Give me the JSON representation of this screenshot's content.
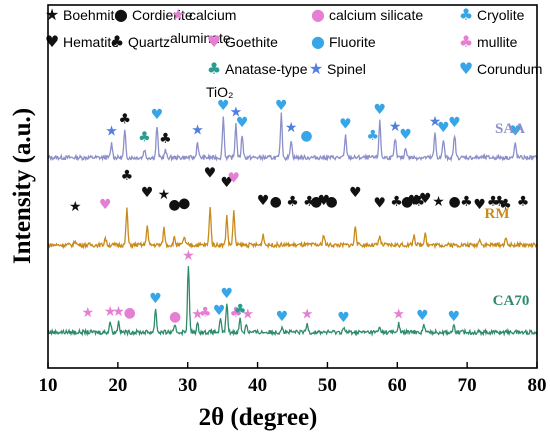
{
  "chart_data": {
    "type": "line",
    "xlabel": "2θ  (degree)",
    "ylabel": "Intensity (a.u.)",
    "xlim": [
      10,
      80
    ],
    "xticks": [
      10,
      20,
      30,
      40,
      50,
      60,
      70,
      80
    ],
    "xtick_labels": [
      "10",
      "20",
      "30",
      "40",
      "50",
      "60",
      "70",
      "80"
    ],
    "grid": false,
    "legend": {
      "placement": "top",
      "entries": [
        {
          "symbol": "★",
          "label": "Boehmite",
          "color": "#111111"
        },
        {
          "symbol": "●",
          "label": "Cordierite",
          "color": "#111111"
        },
        {
          "symbol": "★",
          "label": "calcium aluminate",
          "label_lines": [
            "calcium",
            "aluminate"
          ],
          "color": "#e57fd3"
        },
        {
          "symbol": "●",
          "label": "calcium silicate",
          "color": "#e57fd3"
        },
        {
          "symbol": "♣",
          "label": "Cryolite",
          "color": "#36a6e8"
        },
        {
          "symbol": "♥",
          "label": "Hematite",
          "color": "#111111"
        },
        {
          "symbol": "♣",
          "label": "Quartz",
          "color": "#111111"
        },
        {
          "symbol": "♥",
          "label": "Goethite",
          "color": "#e57fd3"
        },
        {
          "symbol": "●",
          "label": "Fluorite",
          "color": "#36a6e8"
        },
        {
          "symbol": "♣",
          "label": "mullite",
          "color": "#e57fd3"
        },
        {
          "symbol": "♣",
          "label": "Anatase-type TiO₂",
          "label_lines": [
            "Anatase-type",
            "TiO₂"
          ],
          "color": "#2a9d8f"
        },
        {
          "symbol": "★",
          "label": "Spinel",
          "color": "#4f7fe0"
        },
        {
          "symbol": "♥",
          "label": "Corundum",
          "color": "#36a6e8"
        }
      ]
    },
    "series": [
      {
        "name": "SAA",
        "color": "#8c8fc8",
        "baseline": 0.9,
        "peaks": [
          [
            19.1,
            1.2
          ],
          [
            21.0,
            2.2
          ],
          [
            23.8,
            0.7
          ],
          [
            25.6,
            2.6
          ],
          [
            26.8,
            0.6
          ],
          [
            31.4,
            1.3
          ],
          [
            35.1,
            3.4
          ],
          [
            36.9,
            2.8
          ],
          [
            37.8,
            1.9
          ],
          [
            43.4,
            3.6
          ],
          [
            44.8,
            1.5
          ],
          [
            52.6,
            1.8
          ],
          [
            57.5,
            3.0
          ],
          [
            59.7,
            1.6
          ],
          [
            61.2,
            0.9
          ],
          [
            65.4,
            2.0
          ],
          [
            66.6,
            1.5
          ],
          [
            68.2,
            1.9
          ],
          [
            76.9,
            1.2
          ]
        ],
        "markers": [
          {
            "x": 19.1,
            "symbol": "★",
            "color": "#4f7fe0"
          },
          {
            "x": 21.0,
            "symbol": "♣",
            "color": "#111111"
          },
          {
            "x": 23.8,
            "symbol": "♣",
            "color": "#2a9d8f"
          },
          {
            "x": 25.6,
            "symbol": "♥",
            "color": "#36a6e8"
          },
          {
            "x": 26.8,
            "symbol": "♣",
            "color": "#111111"
          },
          {
            "x": 31.4,
            "symbol": "★",
            "color": "#4f7fe0"
          },
          {
            "x": 35.1,
            "symbol": "♥",
            "color": "#36a6e8"
          },
          {
            "x": 36.9,
            "symbol": "★",
            "color": "#4f7fe0"
          },
          {
            "x": 37.8,
            "symbol": "♥",
            "color": "#36a6e8"
          },
          {
            "x": 43.4,
            "symbol": "♥",
            "color": "#36a6e8"
          },
          {
            "x": 44.8,
            "symbol": "★",
            "color": "#4f7fe0"
          },
          {
            "x": 47.0,
            "symbol": "●",
            "color": "#36a6e8"
          },
          {
            "x": 52.6,
            "symbol": "♥",
            "color": "#36a6e8"
          },
          {
            "x": 56.5,
            "symbol": "♣",
            "color": "#36a6e8"
          },
          {
            "x": 57.5,
            "symbol": "♥",
            "color": "#36a6e8"
          },
          {
            "x": 59.7,
            "symbol": "★",
            "color": "#4f7fe0"
          },
          {
            "x": 61.2,
            "symbol": "♥",
            "color": "#36a6e8"
          },
          {
            "x": 65.4,
            "symbol": "★",
            "color": "#4f7fe0"
          },
          {
            "x": 66.6,
            "symbol": "♥",
            "color": "#36a6e8"
          },
          {
            "x": 68.2,
            "symbol": "♥",
            "color": "#36a6e8"
          },
          {
            "x": 76.9,
            "symbol": "♥",
            "color": "#36a6e8"
          }
        ]
      },
      {
        "name": "RM",
        "color": "#c98a1a",
        "baseline": 0.5,
        "peaks": [
          [
            13.9,
            0.4
          ],
          [
            18.2,
            0.6
          ],
          [
            21.3,
            3.0
          ],
          [
            24.2,
            1.6
          ],
          [
            26.6,
            1.4
          ],
          [
            28.1,
            0.6
          ],
          [
            29.5,
            0.7
          ],
          [
            33.2,
            3.2
          ],
          [
            35.6,
            2.4
          ],
          [
            36.6,
            2.8
          ],
          [
            40.8,
            0.9
          ],
          [
            49.5,
            0.9
          ],
          [
            54.0,
            1.6
          ],
          [
            57.5,
            0.7
          ],
          [
            62.4,
            0.9
          ],
          [
            64.0,
            1.1
          ],
          [
            71.8,
            0.6
          ],
          [
            75.5,
            0.6
          ]
        ],
        "markers": [
          {
            "x": 13.9,
            "symbol": "★",
            "color": "#111111"
          },
          {
            "x": 18.2,
            "symbol": "♥",
            "color": "#e57fd3"
          },
          {
            "x": 21.3,
            "symbol": "♣",
            "color": "#111111"
          },
          {
            "x": 24.2,
            "symbol": "♥",
            "color": "#111111"
          },
          {
            "x": 26.6,
            "symbol": "★",
            "color": "#111111"
          },
          {
            "x": 28.1,
            "symbol": "●",
            "color": "#111111"
          },
          {
            "x": 29.5,
            "symbol": "●",
            "color": "#111111"
          },
          {
            "x": 33.2,
            "symbol": "♥",
            "color": "#111111"
          },
          {
            "x": 35.6,
            "symbol": "♥",
            "color": "#111111"
          },
          {
            "x": 36.6,
            "symbol": "♥",
            "color": "#e57fd3"
          },
          {
            "x": 40.8,
            "symbol": "♥",
            "color": "#111111"
          },
          {
            "x": 42.6,
            "symbol": "●",
            "color": "#111111"
          },
          {
            "x": 45.0,
            "symbol": "♣",
            "color": "#111111"
          },
          {
            "x": 47.4,
            "symbol": "♣",
            "color": "#111111"
          },
          {
            "x": 48.4,
            "symbol": "●",
            "color": "#111111"
          },
          {
            "x": 49.5,
            "symbol": "♥",
            "color": "#111111"
          },
          {
            "x": 50.6,
            "symbol": "●",
            "color": "#111111"
          },
          {
            "x": 54.0,
            "symbol": "♥",
            "color": "#111111"
          },
          {
            "x": 57.5,
            "symbol": "♥",
            "color": "#111111"
          },
          {
            "x": 59.9,
            "symbol": "♣",
            "color": "#111111"
          },
          {
            "x": 61.4,
            "symbol": "●",
            "color": "#111111"
          },
          {
            "x": 62.4,
            "symbol": "♥",
            "color": "#111111"
          },
          {
            "x": 63.1,
            "symbol": "♣",
            "color": "#111111"
          },
          {
            "x": 64.0,
            "symbol": "♥",
            "color": "#111111"
          },
          {
            "x": 65.9,
            "symbol": "★",
            "color": "#111111"
          },
          {
            "x": 68.2,
            "symbol": "●",
            "color": "#111111"
          },
          {
            "x": 69.9,
            "symbol": "♣",
            "color": "#111111"
          },
          {
            "x": 71.8,
            "symbol": "♥",
            "color": "#111111"
          },
          {
            "x": 73.7,
            "symbol": "♣",
            "color": "#111111"
          },
          {
            "x": 74.6,
            "symbol": "♣",
            "color": "#111111"
          },
          {
            "x": 75.5,
            "symbol": "♣",
            "color": "#111111"
          },
          {
            "x": 78.0,
            "symbol": "♣",
            "color": "#111111"
          }
        ]
      },
      {
        "name": "CA70",
        "color": "#2e8b6b",
        "baseline": 0.3,
        "peaks": [
          [
            18.9,
            0.9
          ],
          [
            20.1,
            0.9
          ],
          [
            25.4,
            2.0
          ],
          [
            28.2,
            0.5
          ],
          [
            30.1,
            5.6
          ],
          [
            31.4,
            0.7
          ],
          [
            34.7,
            1.0
          ],
          [
            35.6,
            2.4
          ],
          [
            37.5,
            1.1
          ],
          [
            38.4,
            0.7
          ],
          [
            43.5,
            0.5
          ],
          [
            47.1,
            0.7
          ],
          [
            52.3,
            0.4
          ],
          [
            57.5,
            0.4
          ],
          [
            60.2,
            0.7
          ],
          [
            63.8,
            0.6
          ],
          [
            68.1,
            0.5
          ]
        ],
        "markers": [
          {
            "x": 15.7,
            "symbol": "★",
            "color": "#e57fd3"
          },
          {
            "x": 18.9,
            "symbol": "★",
            "color": "#e57fd3"
          },
          {
            "x": 20.1,
            "symbol": "★",
            "color": "#e57fd3"
          },
          {
            "x": 21.7,
            "symbol": "●",
            "color": "#e57fd3"
          },
          {
            "x": 25.4,
            "symbol": "♥",
            "color": "#36a6e8"
          },
          {
            "x": 28.2,
            "symbol": "●",
            "color": "#e57fd3"
          },
          {
            "x": 30.1,
            "symbol": "★",
            "color": "#e57fd3"
          },
          {
            "x": 31.4,
            "symbol": "★",
            "color": "#e57fd3"
          },
          {
            "x": 32.5,
            "symbol": "♣",
            "color": "#e57fd3"
          },
          {
            "x": 34.5,
            "symbol": "♥",
            "color": "#36a6e8"
          },
          {
            "x": 35.6,
            "symbol": "♥",
            "color": "#36a6e8"
          },
          {
            "x": 36.9,
            "symbol": "♣",
            "color": "#e57fd3"
          },
          {
            "x": 37.5,
            "symbol": "♣",
            "color": "#2a9d8f"
          },
          {
            "x": 38.6,
            "symbol": "★",
            "color": "#e57fd3"
          },
          {
            "x": 43.5,
            "symbol": "♥",
            "color": "#36a6e8"
          },
          {
            "x": 47.1,
            "symbol": "★",
            "color": "#e57fd3"
          },
          {
            "x": 52.3,
            "symbol": "♥",
            "color": "#36a6e8"
          },
          {
            "x": 60.2,
            "symbol": "★",
            "color": "#e57fd3"
          },
          {
            "x": 63.6,
            "symbol": "♥",
            "color": "#36a6e8"
          },
          {
            "x": 68.1,
            "symbol": "♥",
            "color": "#36a6e8"
          }
        ]
      }
    ]
  }
}
